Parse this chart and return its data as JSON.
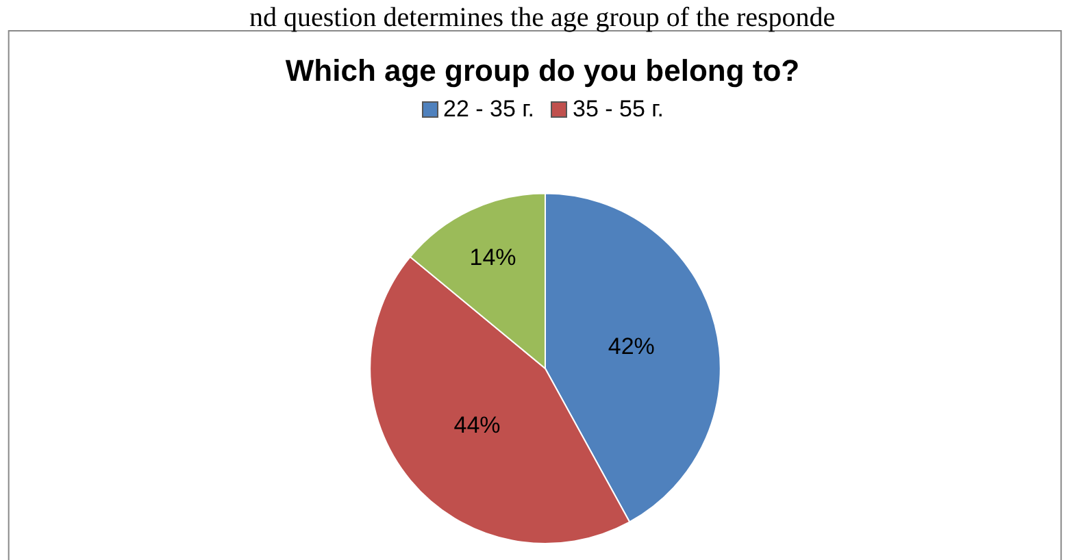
{
  "chart_data": {
    "type": "pie",
    "title": "Which age group do you belong to?",
    "annotations": [
      "nd question determines the age group of the responde"
    ],
    "categories": [
      "22 - 35 г.",
      "35 - 55 г.",
      null
    ],
    "values": [
      42,
      44,
      14
    ],
    "colors": [
      "#4f81bd",
      "#c0504d",
      "#9bbb59"
    ],
    "value_labels": [
      "42%",
      "44%",
      "14%"
    ],
    "legend": "top"
  }
}
